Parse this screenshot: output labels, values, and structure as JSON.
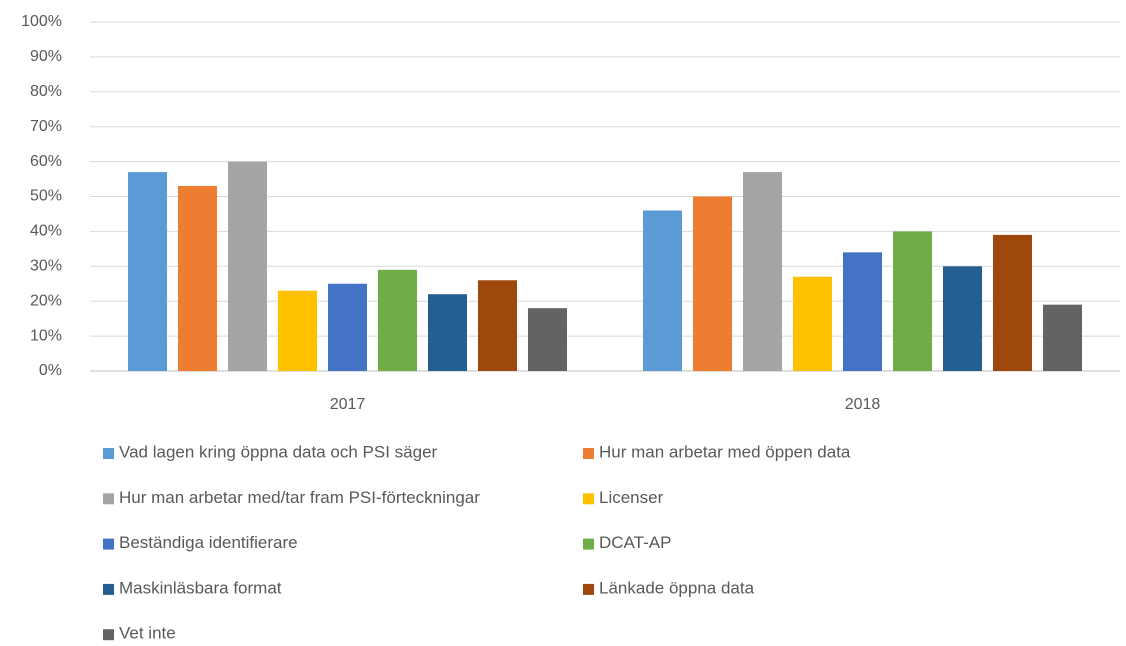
{
  "chart_data": {
    "type": "bar",
    "categories": [
      "2017",
      "2018"
    ],
    "series": [
      {
        "name": "Vad lagen kring öppna data och PSI säger",
        "color": "#5b9bd5",
        "values": [
          57,
          46
        ]
      },
      {
        "name": "Hur man arbetar med öppen data",
        "color": "#ed7d31",
        "values": [
          53,
          50
        ]
      },
      {
        "name": "Hur man arbetar med/tar fram PSI-förteckningar",
        "color": "#a5a5a5",
        "values": [
          60,
          57
        ]
      },
      {
        "name": "Licenser",
        "color": "#ffc000",
        "values": [
          23,
          27
        ]
      },
      {
        "name": "Beständiga identifierare",
        "color": "#4472c4",
        "values": [
          25,
          34
        ]
      },
      {
        "name": "DCAT-AP",
        "color": "#70ad47",
        "values": [
          29,
          40
        ]
      },
      {
        "name": "Maskinläsbara format",
        "color": "#255e91",
        "values": [
          22,
          30
        ]
      },
      {
        "name": "Länkade öppna data",
        "color": "#9e480e",
        "values": [
          26,
          39
        ]
      },
      {
        "name": "Vet inte",
        "color": "#636363",
        "values": [
          18,
          19
        ]
      }
    ],
    "ylim": [
      0,
      100
    ],
    "yticks": [
      {
        "value": 0,
        "label": "0%"
      },
      {
        "value": 10,
        "label": "10%"
      },
      {
        "value": 20,
        "label": "20%"
      },
      {
        "value": 30,
        "label": "30%"
      },
      {
        "value": 40,
        "label": "40%"
      },
      {
        "value": 50,
        "label": "50%"
      },
      {
        "value": 60,
        "label": "60%"
      },
      {
        "value": 70,
        "label": "70%"
      },
      {
        "value": 80,
        "label": "80%"
      },
      {
        "value": 90,
        "label": "90%"
      },
      {
        "value": 100,
        "label": "100%"
      }
    ],
    "grid": true,
    "legend": "bottom"
  }
}
